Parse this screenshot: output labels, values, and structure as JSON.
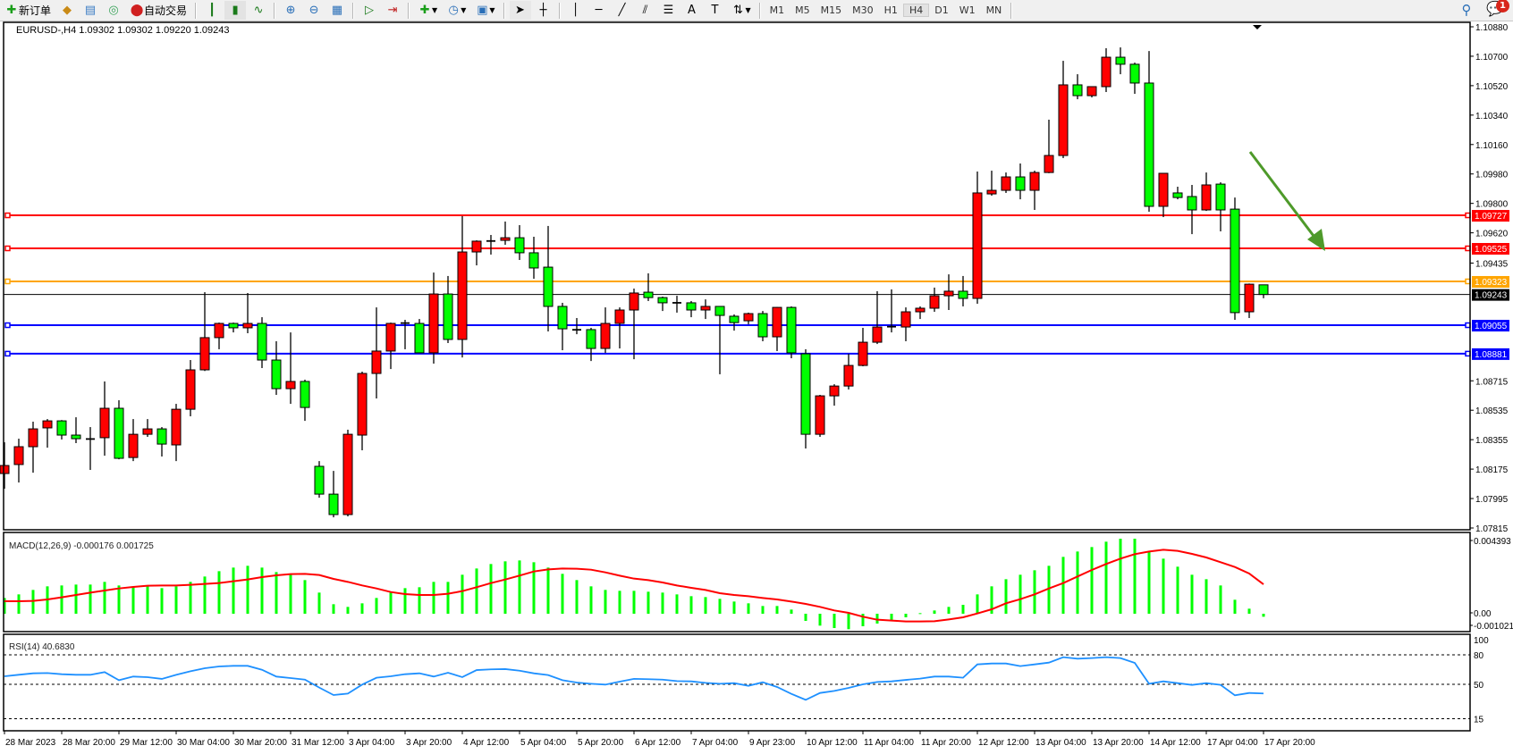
{
  "toolbar": {
    "new_order_label": "新订单",
    "auto_trading_label": "自动交易",
    "timeframes": [
      "M1",
      "M5",
      "M15",
      "M30",
      "H1",
      "H4",
      "D1",
      "W1",
      "MN"
    ],
    "active_timeframe": "H4",
    "notification_count": "1",
    "icons": [
      "new-order-icon",
      "market-watch-icon",
      "navigator-icon",
      "signals-icon",
      "auto-trading-icon",
      "bar-chart-icon",
      "candlestick-icon",
      "line-chart-icon",
      "zoom-in-icon",
      "zoom-out-icon",
      "tile-windows-icon",
      "autoscroll-icon",
      "chart-shift-icon",
      "indicators-icon",
      "periods-icon",
      "templates-icon",
      "cursor-icon",
      "crosshair-icon",
      "vertical-line-icon",
      "horizontal-line-icon",
      "trendline-icon",
      "equidistant-channel-icon",
      "fibonacci-icon",
      "text-icon",
      "text-label-icon",
      "arrows-icon",
      "search-icon",
      "chat-icon"
    ]
  },
  "chart": {
    "header": "EURUSD-,H4  1.09302 1.09302 1.09220 1.09243",
    "symbol": "EURUSD-",
    "timeframe": "H4",
    "current_price": "1.09243",
    "colors": {
      "bull": "#ff0000",
      "bear": "#00ff00",
      "grid": "#000000",
      "macd_hist": "#00ff00",
      "macd_signal": "#ff0000",
      "rsi": "#1e90ff",
      "arrow": "#4e9a2a"
    },
    "price_axis": [
      "1.10880",
      "1.10700",
      "1.10520",
      "1.10340",
      "1.10160",
      "1.09980",
      "1.09800",
      "1.09620",
      "1.09435",
      "1.08715",
      "1.08535",
      "1.08355",
      "1.08175",
      "1.07995",
      "1.07815"
    ],
    "hlines": [
      {
        "price": "1.09727",
        "color": "#ff0000"
      },
      {
        "price": "1.09525",
        "color": "#ff0000"
      },
      {
        "price": "1.09323",
        "color": "#ffa500"
      },
      {
        "price": "1.09055",
        "color": "#0000ff"
      },
      {
        "price": "1.08881",
        "color": "#0000ff"
      }
    ],
    "time_axis": [
      "28 Mar 2023",
      "28 Mar 20:00",
      "29 Mar 12:00",
      "30 Mar 04:00",
      "30 Mar 20:00",
      "31 Mar 12:00",
      "3 Apr 04:00",
      "3 Apr 20:00",
      "4 Apr 12:00",
      "5 Apr 04:00",
      "5 Apr 20:00",
      "6 Apr 12:00",
      "7 Apr 04:00",
      "9 Apr 23:00",
      "10 Apr 12:00",
      "11 Apr 04:00",
      "11 Apr 20:00",
      "12 Apr 12:00",
      "13 Apr 04:00",
      "13 Apr 20:00",
      "14 Apr 12:00",
      "17 Apr 04:00",
      "17 Apr 20:00"
    ],
    "candles_ohlc": [
      [
        1.08148,
        1.08339,
        1.08055,
        1.08197
      ],
      [
        1.08203,
        1.08361,
        1.08093,
        1.08312
      ],
      [
        1.08312,
        1.08465,
        1.08153,
        1.08421
      ],
      [
        1.08427,
        1.08481,
        1.08306,
        1.0847
      ],
      [
        1.0847,
        1.08475,
        1.08356,
        1.08383
      ],
      [
        1.08383,
        1.08492,
        1.08334,
        1.08361
      ],
      [
        1.08361,
        1.08432,
        1.0817,
        1.08359
      ],
      [
        1.08367,
        1.08711,
        1.08257,
        1.08547
      ],
      [
        1.08547,
        1.08596,
        1.08235,
        1.08241
      ],
      [
        1.08246,
        1.08481,
        1.08224,
        1.08388
      ],
      [
        1.08388,
        1.08481,
        1.08372,
        1.08421
      ],
      [
        1.08421,
        1.08432,
        1.08252,
        1.08328
      ],
      [
        1.08323,
        1.08574,
        1.08224,
        1.08541
      ],
      [
        1.08541,
        1.08842,
        1.08498,
        1.08782
      ],
      [
        1.08782,
        1.09257,
        1.08775,
        1.08979
      ],
      [
        1.08979,
        1.09071,
        1.08908,
        1.09066
      ],
      [
        1.09066,
        1.09071,
        1.09011,
        1.09039
      ],
      [
        1.09039,
        1.09252,
        1.09006,
        1.09066
      ],
      [
        1.09066,
        1.09104,
        1.08793,
        1.08842
      ],
      [
        1.08842,
        1.08957,
        1.08629,
        1.08667
      ],
      [
        1.08667,
        1.09011,
        1.08574,
        1.08711
      ],
      [
        1.08711,
        1.08722,
        1.0847,
        1.08552
      ],
      [
        1.08192,
        1.08224,
        1.08,
        1.08022
      ],
      [
        1.08022,
        1.08164,
        1.0788,
        1.07897
      ],
      [
        1.07897,
        1.08416,
        1.07886,
        1.08388
      ],
      [
        1.08383,
        1.08771,
        1.0829,
        1.0876
      ],
      [
        1.0876,
        1.09164,
        1.08607,
        1.08897
      ],
      [
        1.08897,
        1.09071,
        1.08787,
        1.09066
      ],
      [
        1.09066,
        1.09088,
        1.08908,
        1.09068
      ],
      [
        1.09066,
        1.09093,
        1.08886,
        1.08886
      ],
      [
        1.08886,
        1.09377,
        1.0882,
        1.09246
      ],
      [
        1.09246,
        1.09356,
        1.08946,
        1.08968
      ],
      [
        1.08968,
        1.09722,
        1.08858,
        1.09503
      ],
      [
        1.09503,
        1.09574,
        1.09421,
        1.09569
      ],
      [
        1.09569,
        1.09607,
        1.09487,
        1.0957
      ],
      [
        1.09574,
        1.09689,
        1.09547,
        1.0959
      ],
      [
        1.0959,
        1.09667,
        1.09454,
        1.09498
      ],
      [
        1.09498,
        1.09596,
        1.09339,
        1.09405
      ],
      [
        1.0941,
        1.09662,
        1.09017,
        1.0917
      ],
      [
        1.0917,
        1.09192,
        1.08902,
        1.09033
      ],
      [
        1.09028,
        1.09099,
        1.09,
        1.09027
      ],
      [
        1.09028,
        1.09039,
        1.08836,
        1.08913
      ],
      [
        1.08913,
        1.09164,
        1.08886,
        1.09066
      ],
      [
        1.09066,
        1.09164,
        1.08913,
        1.09148
      ],
      [
        1.09148,
        1.09279,
        1.08847,
        1.09252
      ],
      [
        1.09257,
        1.09372,
        1.09203,
        1.09224
      ],
      [
        1.09224,
        1.0923,
        1.09142,
        1.09192
      ],
      [
        1.09192,
        1.09235,
        1.09132,
        1.09192
      ],
      [
        1.09192,
        1.09203,
        1.09104,
        1.09148
      ],
      [
        1.09148,
        1.09213,
        1.09093,
        1.0917
      ],
      [
        1.0917,
        1.0917,
        1.08755,
        1.09115
      ],
      [
        1.0911,
        1.09121,
        1.09022,
        1.09071
      ],
      [
        1.09082,
        1.09132,
        1.09061,
        1.09126
      ],
      [
        1.09126,
        1.09142,
        1.08957,
        1.08984
      ],
      [
        1.08984,
        1.09166,
        1.08897,
        1.09164
      ],
      [
        1.09164,
        1.0917,
        1.08853,
        1.08886
      ],
      [
        1.0888,
        1.08908,
        1.08301,
        1.08388
      ],
      [
        1.08388,
        1.08629,
        1.08372,
        1.08623
      ],
      [
        1.08623,
        1.08694,
        1.08563,
        1.08683
      ],
      [
        1.08683,
        1.0888,
        1.08662,
        1.08809
      ],
      [
        1.08809,
        1.09039,
        1.08804,
        1.08951
      ],
      [
        1.08951,
        1.09263,
        1.0894,
        1.09044
      ],
      [
        1.09044,
        1.09274,
        1.09011,
        1.09046
      ],
      [
        1.09044,
        1.09164,
        1.08957,
        1.09137
      ],
      [
        1.09137,
        1.0917,
        1.09093,
        1.09159
      ],
      [
        1.09159,
        1.09285,
        1.09137,
        1.09235
      ],
      [
        1.09235,
        1.09366,
        1.09148,
        1.09263
      ],
      [
        1.09263,
        1.09356,
        1.0917,
        1.09219
      ],
      [
        1.09219,
        1.09995,
        1.09186,
        1.09864
      ],
      [
        1.09858,
        1.1,
        1.09847,
        1.0988
      ],
      [
        1.0988,
        1.09989,
        1.09864,
        1.09962
      ],
      [
        1.09962,
        1.10044,
        1.09825,
        1.0988
      ],
      [
        1.0988,
        1.1,
        1.0976,
        1.09989
      ],
      [
        1.09989,
        1.10312,
        1.09985,
        1.10093
      ],
      [
        1.10093,
        1.10672,
        1.10077,
        1.10525
      ],
      [
        1.10525,
        1.1059,
        1.10437,
        1.10459
      ],
      [
        1.10459,
        1.10516,
        1.10448,
        1.10514
      ],
      [
        1.10514,
        1.10749,
        1.10481,
        1.10694
      ],
      [
        1.10694,
        1.10754,
        1.1059,
        1.10651
      ],
      [
        1.10651,
        1.10661,
        1.1047,
        1.10536
      ],
      [
        1.10536,
        1.10732,
        1.09749,
        1.09782
      ],
      [
        1.09782,
        1.09986,
        1.09716,
        1.09984
      ],
      [
        1.09864,
        1.09902,
        1.09825,
        1.09836
      ],
      [
        1.09842,
        1.09913,
        1.09612,
        1.0976
      ],
      [
        1.0976,
        1.09989,
        1.09754,
        1.09913
      ],
      [
        1.09918,
        1.09929,
        1.09629,
        1.0976
      ],
      [
        1.09765,
        1.09836,
        1.09088,
        1.09132
      ],
      [
        1.09137,
        1.0931,
        1.09099,
        1.09306
      ],
      [
        1.09302,
        1.09302,
        1.0922,
        1.09243
      ]
    ],
    "price_range": [
      1.07815,
      1.1088
    ]
  },
  "macd": {
    "label": "MACD(12,26,9) -0.000176 0.001725",
    "axis": [
      "0.004393",
      "0.00",
      "-0.001021"
    ],
    "range": [
      -0.001021,
      0.004393
    ],
    "histogram": [
      0.000924,
      0.001133,
      0.001394,
      0.001604,
      0.001656,
      0.001708,
      0.001708,
      0.001865,
      0.001656,
      0.001604,
      0.001604,
      0.001499,
      0.001604,
      0.001865,
      0.002179,
      0.002492,
      0.002702,
      0.002806,
      0.002702,
      0.00244,
      0.002283,
      0.00197,
      0.001238,
      0.000558,
      0.000401,
      0.00061,
      0.000924,
      0.001238,
      0.001499,
      0.001551,
      0.001865,
      0.001865,
      0.002283,
      0.002649,
      0.002911,
      0.003068,
      0.00312,
      0.003015,
      0.002702,
      0.002336,
      0.00197,
      0.001604,
      0.001394,
      0.001342,
      0.001342,
      0.00129,
      0.001238,
      0.001133,
      0.001028,
      0.000976,
      0.000872,
      0.000715,
      0.00061,
      0.000453,
      0.000453,
      0.000244,
      -0.000418,
      -0.000697,
      -0.000837,
      -0.000906,
      -0.000732,
      -0.000575,
      -0.000401,
      -0.000209,
      3.5e-05,
      0.000192,
      0.000401,
      0.000523,
      0.001133,
      0.001604,
      0.002022,
      0.002283,
      0.002545,
      0.002806,
      0.003329,
      0.003643,
      0.003904,
      0.004218,
      0.004392,
      0.004392,
      0.003643,
      0.003225,
      0.002754,
      0.002283,
      0.002022,
      0.001656,
      0.000819,
      0.000296,
      -0.000176
    ],
    "signal": [
      0.000732,
      0.000732,
      0.000749,
      0.000836,
      0.000959,
      0.001098,
      0.001238,
      0.00136,
      0.001481,
      0.001569,
      0.001638,
      0.001656,
      0.001656,
      0.001691,
      0.001743,
      0.001795,
      0.0019,
      0.002005,
      0.002144,
      0.002249,
      0.002318,
      0.002336,
      0.002266,
      0.00204,
      0.001865,
      0.001656,
      0.001481,
      0.001272,
      0.00115,
      0.001098,
      0.001098,
      0.001168,
      0.001325,
      0.001551,
      0.001795,
      0.002005,
      0.002231,
      0.002475,
      0.002597,
      0.002649,
      0.002632,
      0.002579,
      0.002423,
      0.002231,
      0.002057,
      0.00197,
      0.00183,
      0.001656,
      0.001517,
      0.001394,
      0.001203,
      0.001098,
      0.001028,
      0.000924,
      0.000837,
      0.000715,
      0.000575,
      0.000401,
      0.000192,
      5.2e-05,
      -0.000174,
      -0.000349,
      -0.000401,
      -0.000453,
      -0.000453,
      -0.000436,
      -0.000331,
      -0.000209,
      1.7e-05,
      0.000261,
      0.00061,
      0.000854,
      0.001133,
      0.001481,
      0.001795,
      0.002179,
      0.002562,
      0.002911,
      0.003224,
      0.003486,
      0.003643,
      0.003747,
      0.003678,
      0.003503,
      0.003294,
      0.003015,
      0.002737,
      0.002353,
      0.001725
    ]
  },
  "rsi": {
    "label": "RSI(14) 40.6830",
    "axis": [
      "100",
      "80",
      "50",
      "15"
    ],
    "levels": [
      80,
      50,
      15
    ],
    "values": [
      58.2,
      59.7,
      61.2,
      61.5,
      60.3,
      59.7,
      59.7,
      62.4,
      54.2,
      57.9,
      57.3,
      55.5,
      59.7,
      63.3,
      66.4,
      68.2,
      68.8,
      68.8,
      64.8,
      57.9,
      56.4,
      54.8,
      46.7,
      39.1,
      40.6,
      49.7,
      56.7,
      58.2,
      60.3,
      61.2,
      57.9,
      61.8,
      57.3,
      64.5,
      65.2,
      65.5,
      63.9,
      61.2,
      59.4,
      54.2,
      51.8,
      50.6,
      49.7,
      52.7,
      55.6,
      55.2,
      54.8,
      53.3,
      53.0,
      51.5,
      50.6,
      51.2,
      48.5,
      52.1,
      47.3,
      40.3,
      34.2,
      41.2,
      43.3,
      46.4,
      50.0,
      52.4,
      53.0,
      54.5,
      55.8,
      57.9,
      57.9,
      56.7,
      70.3,
      71.2,
      71.2,
      68.5,
      70.3,
      72.1,
      77.6,
      76.1,
      76.7,
      77.6,
      76.7,
      71.8,
      50.6,
      53.0,
      51.2,
      49.4,
      51.2,
      49.4,
      38.8,
      41.2,
      40.683
    ]
  }
}
